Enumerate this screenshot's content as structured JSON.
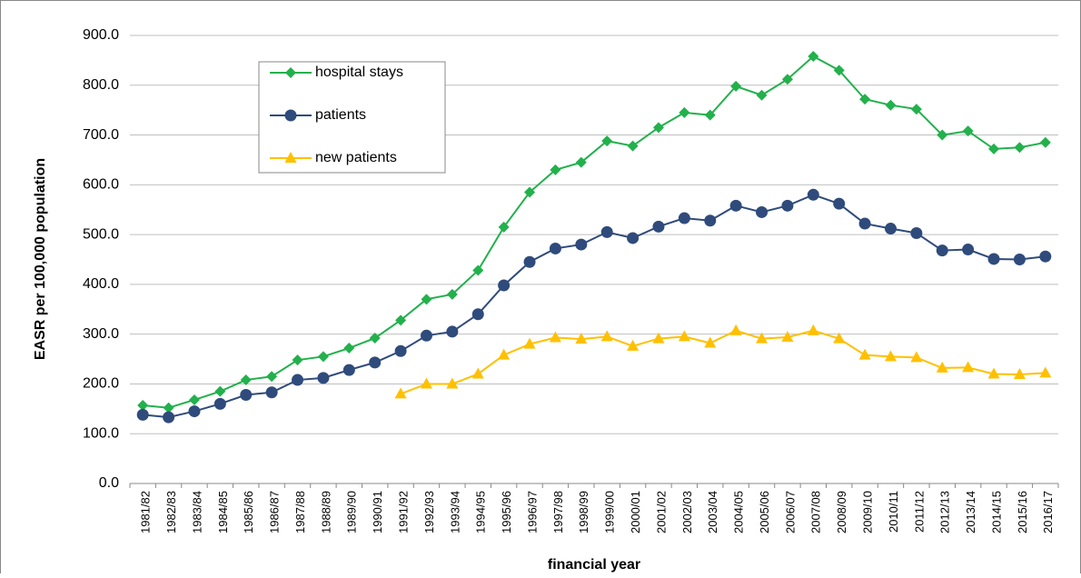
{
  "chart_data": {
    "type": "line",
    "y_label": "EASR per 100,000 population",
    "x_label": "financial year",
    "categories": [
      "1981/82",
      "1982/83",
      "1983/84",
      "1984/85",
      "1985/86",
      "1986/87",
      "1987/88",
      "1988/89",
      "1989/90",
      "1990/91",
      "1991/92",
      "1992/93",
      "1993/94",
      "1994/95",
      "1995/96",
      "1996/97",
      "1997/98",
      "1998/99",
      "1999/00",
      "2000/01",
      "2001/02",
      "2002/03",
      "2003/04",
      "2004/05",
      "2005/06",
      "2006/07",
      "2007/08",
      "2008/09",
      "2009/10",
      "2010/11",
      "2011/12",
      "2012/13",
      "2013/14",
      "2014/15",
      "2015/16",
      "2016/17"
    ],
    "series": [
      {
        "name": "hospital stays",
        "color": "#22b14c",
        "marker": "diamond",
        "values": [
          157,
          152,
          168,
          185,
          208,
          215,
          248,
          255,
          272,
          292,
          328,
          370,
          380,
          428,
          515,
          585,
          630,
          645,
          688,
          678,
          715,
          745,
          740,
          798,
          780,
          812,
          858,
          830,
          772,
          760,
          752,
          700,
          708,
          672,
          675,
          685
        ]
      },
      {
        "name": "patients",
        "color": "#2f4b7c",
        "marker": "circle",
        "values": [
          138,
          133,
          145,
          160,
          178,
          183,
          208,
          212,
          228,
          243,
          266,
          297,
          305,
          340,
          398,
          445,
          472,
          480,
          505,
          493,
          516,
          533,
          528,
          558,
          545,
          558,
          580,
          562,
          522,
          512,
          503,
          468,
          470,
          451,
          450,
          456
        ]
      },
      {
        "name": "new patients",
        "color": "#ffc000",
        "marker": "triangle",
        "values": [
          null,
          null,
          null,
          null,
          null,
          null,
          null,
          null,
          null,
          null,
          180,
          200,
          200,
          220,
          258,
          280,
          293,
          290,
          295,
          276,
          291,
          295,
          282,
          307,
          291,
          294,
          307,
          291,
          258,
          255,
          253,
          232,
          233,
          220,
          219,
          222
        ]
      }
    ],
    "ylim": [
      0,
      900
    ],
    "yticks": [
      {
        "value": 0,
        "label": "0.0"
      },
      {
        "value": 100,
        "label": "100.0"
      },
      {
        "value": 200,
        "label": "200.0"
      },
      {
        "value": 300,
        "label": "300.0"
      },
      {
        "value": 400,
        "label": "400.0"
      },
      {
        "value": 500,
        "label": "500.0"
      },
      {
        "value": 600,
        "label": "600.0"
      },
      {
        "value": 700,
        "label": "700.0"
      },
      {
        "value": 800,
        "label": "800.0"
      },
      {
        "value": 900,
        "label": "900.0"
      }
    ],
    "grid": true,
    "legend": "top-left"
  }
}
